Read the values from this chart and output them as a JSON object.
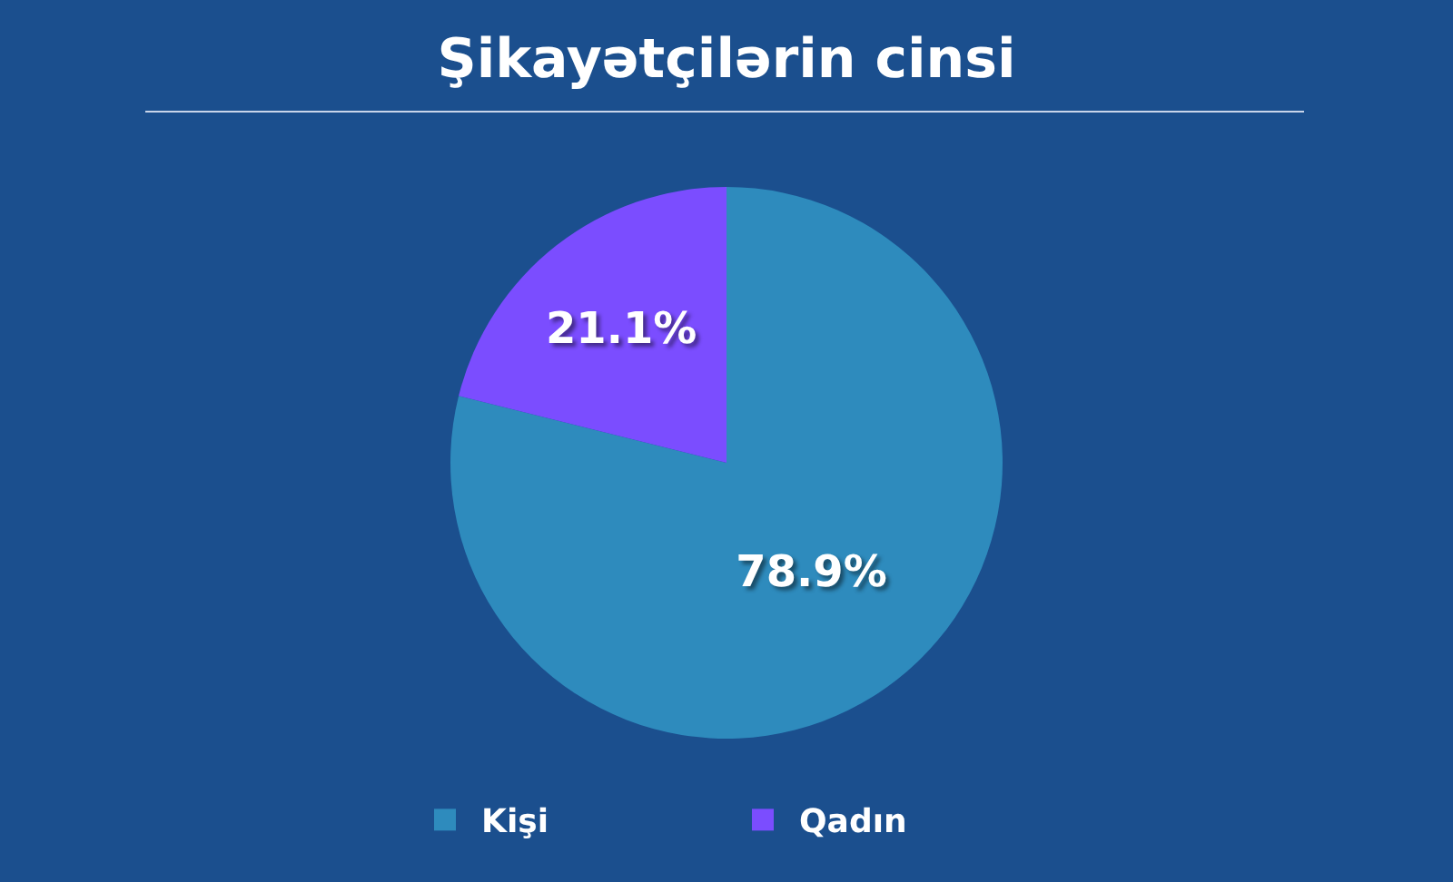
{
  "chart_data": {
    "type": "pie",
    "title": "Şikayətçilərin cinsi",
    "categories": [
      "Kişi",
      "Qadın"
    ],
    "values": [
      78.9,
      21.1
    ],
    "colors": [
      "#2e8bbd",
      "#7b4dff"
    ],
    "value_labels": [
      "78.9%",
      "21.1%"
    ],
    "legend": "bottom"
  }
}
